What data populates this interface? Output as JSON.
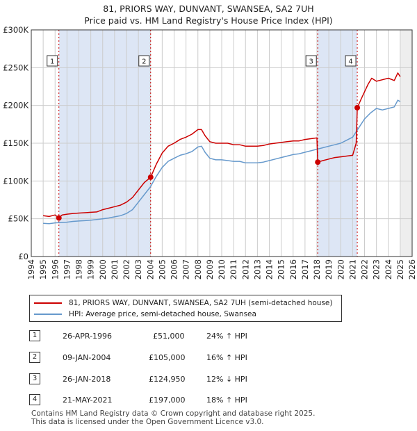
{
  "header": {
    "title_line1": "81, PRIORS WAY, DUNVANT, SWANSEA, SA2 7UH",
    "title_line2": "Price paid vs. HM Land Registry's House Price Index (HPI)"
  },
  "legend": {
    "property_label": "81, PRIORS WAY, DUNVANT, SWANSEA, SA2 7UH (semi-detached house)",
    "hpi_label": "HPI: Average price, semi-detached house, Swansea"
  },
  "transactions": [
    {
      "num": "1",
      "date": "26-APR-1996",
      "price": "£51,000",
      "hpi": "24% ↑ HPI"
    },
    {
      "num": "2",
      "date": "09-JAN-2004",
      "price": "£105,000",
      "hpi": "16% ↑ HPI"
    },
    {
      "num": "3",
      "date": "26-JAN-2018",
      "price": "£124,950",
      "hpi": "12% ↓ HPI"
    },
    {
      "num": "4",
      "date": "21-MAY-2021",
      "price": "£197,000",
      "hpi": "18% ↑ HPI"
    }
  ],
  "footer": {
    "line1": "Contains HM Land Registry data © Crown copyright and database right 2025.",
    "line2": "This data is licensed under the Open Government Licence v3.0."
  },
  "colors": {
    "property": "#cc0000",
    "hpi": "#6699cc",
    "shade": "#dde6f5",
    "grid": "#cccccc",
    "marker_line": "#cc0000"
  },
  "chart_data": {
    "type": "line",
    "title": "81, PRIORS WAY, DUNVANT, SWANSEA, SA2 7UH",
    "subtitle": "Price paid vs. HM Land Registry's House Price Index (HPI)",
    "xlabel": "",
    "ylabel": "",
    "xlim": [
      1994,
      2026
    ],
    "ylim": [
      0,
      300000
    ],
    "x_ticks": [
      1994,
      1995,
      1996,
      1997,
      1998,
      1999,
      2000,
      2001,
      2002,
      2003,
      2004,
      2005,
      2006,
      2007,
      2008,
      2009,
      2010,
      2011,
      2012,
      2013,
      2014,
      2015,
      2016,
      2017,
      2018,
      2019,
      2020,
      2021,
      2022,
      2023,
      2024,
      2025,
      2026
    ],
    "y_ticks": [
      0,
      50000,
      100000,
      150000,
      200000,
      250000,
      300000
    ],
    "y_tick_labels": [
      "£0",
      "£50K",
      "£100K",
      "£150K",
      "£200K",
      "£250K",
      "£300K"
    ],
    "grid": true,
    "legend_position": "bottom",
    "shaded_ranges": [
      [
        1996.32,
        2004.03
      ],
      [
        2018.07,
        2021.39
      ]
    ],
    "sales": [
      {
        "label": "1",
        "x": 1996.32,
        "y": 51000
      },
      {
        "label": "2",
        "x": 2004.03,
        "y": 105000
      },
      {
        "label": "3",
        "x": 2018.07,
        "y": 124950
      },
      {
        "label": "4",
        "x": 2021.39,
        "y": 197000
      }
    ],
    "series": [
      {
        "name": "81, PRIORS WAY, DUNVANT, SWANSEA, SA2 7UH (semi-detached house)",
        "x": [
          1995.0,
          1995.5,
          1996.0,
          1996.32,
          1996.6,
          1997.0,
          1997.5,
          1998.0,
          1998.5,
          1999.0,
          1999.5,
          2000.0,
          2000.5,
          2001.0,
          2001.5,
          2002.0,
          2002.5,
          2003.0,
          2003.5,
          2004.03,
          2004.5,
          2005.0,
          2005.5,
          2006.0,
          2006.5,
          2007.0,
          2007.5,
          2008.0,
          2008.3,
          2008.6,
          2009.0,
          2009.5,
          2010.0,
          2010.5,
          2011.0,
          2011.5,
          2012.0,
          2012.5,
          2013.0,
          2013.5,
          2014.0,
          2014.5,
          2015.0,
          2015.5,
          2016.0,
          2016.5,
          2017.0,
          2017.5,
          2018.0,
          2018.07,
          2018.5,
          2019.0,
          2019.5,
          2020.0,
          2020.5,
          2021.0,
          2021.3,
          2021.39,
          2021.7,
          2022.0,
          2022.3,
          2022.6,
          2023.0,
          2023.5,
          2024.0,
          2024.5,
          2024.8,
          2025.0
        ],
        "y": [
          54000,
          53000,
          55000,
          51000,
          55000,
          56000,
          57000,
          57500,
          58000,
          58500,
          59000,
          62000,
          64000,
          66000,
          68000,
          72000,
          78000,
          88000,
          98000,
          105000,
          122000,
          137000,
          146000,
          150000,
          155000,
          158000,
          162000,
          168000,
          168000,
          160000,
          152000,
          150000,
          150000,
          150000,
          148000,
          148000,
          146000,
          146000,
          146000,
          147000,
          149000,
          150000,
          151000,
          152000,
          153000,
          153000,
          155000,
          156000,
          157000,
          124950,
          127000,
          129000,
          131000,
          132000,
          133000,
          134000,
          150000,
          197000,
          208000,
          218000,
          228000,
          236000,
          232000,
          234000,
          236000,
          233000,
          243000,
          238000
        ]
      },
      {
        "name": "HPI: Average price, semi-detached house, Swansea",
        "x": [
          1995.0,
          1995.5,
          1996.0,
          1996.5,
          1997.0,
          1997.5,
          1998.0,
          1998.5,
          1999.0,
          1999.5,
          2000.0,
          2000.5,
          2001.0,
          2001.5,
          2002.0,
          2002.5,
          2003.0,
          2003.5,
          2004.0,
          2004.5,
          2005.0,
          2005.5,
          2006.0,
          2006.5,
          2007.0,
          2007.5,
          2008.0,
          2008.3,
          2008.6,
          2009.0,
          2009.5,
          2010.0,
          2010.5,
          2011.0,
          2011.5,
          2012.0,
          2012.5,
          2013.0,
          2013.5,
          2014.0,
          2014.5,
          2015.0,
          2015.5,
          2016.0,
          2016.5,
          2017.0,
          2017.5,
          2018.0,
          2018.5,
          2019.0,
          2019.5,
          2020.0,
          2020.5,
          2021.0,
          2021.5,
          2022.0,
          2022.5,
          2023.0,
          2023.5,
          2024.0,
          2024.5,
          2024.8,
          2025.0
        ],
        "y": [
          44000,
          43500,
          44500,
          45000,
          45500,
          46500,
          47000,
          47500,
          48000,
          49000,
          50000,
          51000,
          52500,
          54000,
          57000,
          62000,
          72000,
          82000,
          92000,
          106000,
          118000,
          126000,
          130000,
          134000,
          136000,
          139000,
          145000,
          146000,
          138000,
          130000,
          128000,
          128000,
          127000,
          126000,
          126000,
          124000,
          124000,
          124000,
          125000,
          127000,
          129000,
          131000,
          133000,
          135000,
          136000,
          138000,
          140000,
          142000,
          144000,
          146000,
          148000,
          150000,
          154000,
          158000,
          170000,
          182000,
          190000,
          196000,
          194000,
          196000,
          198000,
          207000,
          205000
        ]
      }
    ]
  }
}
